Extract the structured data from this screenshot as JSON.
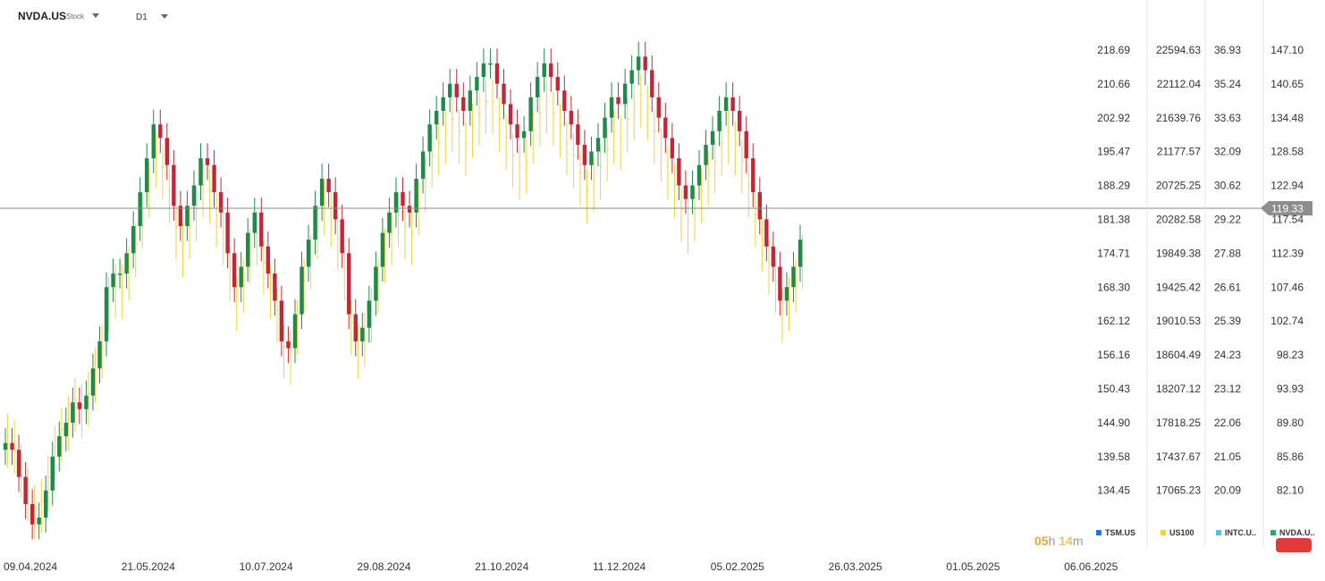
{
  "header": {
    "symbol": "NVDA.US",
    "type": "Stock",
    "timeframe": "D1"
  },
  "timer": {
    "hours": "05",
    "h_unit": "h",
    "minutes": "14",
    "m_unit": "m"
  },
  "colors": {
    "up": "#1f8a4c",
    "down": "#c0283a",
    "us100": "#f2d23c",
    "tsm": "#1a73e8",
    "intc": "#4fc3e8",
    "nvda": "#2aa86a",
    "crosshair": "#888888",
    "price_tag": "#8d8d8d"
  },
  "legend": [
    {
      "label": "TSM.US",
      "color": "#1a73e8"
    },
    {
      "label": "US100",
      "color": "#f2d23c"
    },
    {
      "label": "INTC.U..",
      "color": "#4fc3e8"
    },
    {
      "label": "NVDA.U..",
      "color": "#2aa86a"
    }
  ],
  "chart_data": {
    "type": "candlestick",
    "x_ticks": [
      "09.04.2024",
      "21.05.2024",
      "10.07.2024",
      "29.08.2024",
      "21.10.2024",
      "11.12.2024",
      "05.02.2025",
      "26.03.2025",
      "01.05.2025",
      "06.06.2025"
    ],
    "grid": false,
    "current_price": "119.33",
    "axes": [
      {
        "name": "TSM.US",
        "ticks": [
          "218.69",
          "210.66",
          "202.92",
          "195.47",
          "188.29",
          "181.38",
          "174.71",
          "168.30",
          "162.12",
          "156.16",
          "150.43",
          "144.90",
          "139.58",
          "134.45"
        ]
      },
      {
        "name": "US100",
        "ticks": [
          "22594.63",
          "22112.04",
          "21639.76",
          "21177.57",
          "20725.25",
          "20282.58",
          "19849.38",
          "19425.42",
          "19010.53",
          "18604.49",
          "18207.12",
          "17818.25",
          "17437.67",
          "17065.23"
        ]
      },
      {
        "name": "INTC.US",
        "ticks": [
          "36.93",
          "35.24",
          "33.63",
          "32.09",
          "30.62",
          "29.22",
          "27.88",
          "26.61",
          "25.39",
          "24.23",
          "23.12",
          "22.06",
          "21.05",
          "20.09"
        ]
      },
      {
        "name": "NVDA.US",
        "ticks": [
          "147.10",
          "140.65",
          "134.48",
          "128.58",
          "122.94",
          "117.54",
          "112.39",
          "107.46",
          "102.74",
          "98.23",
          "93.93",
          "89.80",
          "85.86",
          "82.10"
        ]
      }
    ],
    "nvda_close": [
      89,
      88,
      84,
      80,
      77,
      78,
      82,
      87,
      90,
      92,
      95,
      94,
      96,
      100,
      104,
      112,
      114,
      114,
      117,
      121,
      126,
      131,
      136,
      134,
      130,
      124,
      121,
      124,
      127,
      131,
      130,
      126,
      123,
      117,
      112,
      115,
      120,
      123,
      118,
      114,
      110,
      104,
      103,
      108,
      115,
      119,
      124,
      128,
      126,
      122,
      117,
      108,
      104,
      106,
      110,
      115,
      120,
      123,
      126,
      124,
      123,
      128,
      132,
      136,
      138,
      140,
      142,
      140,
      138,
      141,
      143,
      145,
      145,
      142,
      139,
      136,
      134,
      135,
      140,
      143,
      145,
      143,
      141,
      138,
      136,
      133,
      130,
      132,
      134,
      137,
      140,
      139,
      142,
      144,
      146,
      144,
      140,
      137,
      134,
      131,
      127,
      125,
      127,
      130,
      133,
      135,
      138,
      140,
      138,
      135,
      131,
      126,
      122,
      118,
      115,
      110,
      112,
      115,
      119
    ]
  }
}
